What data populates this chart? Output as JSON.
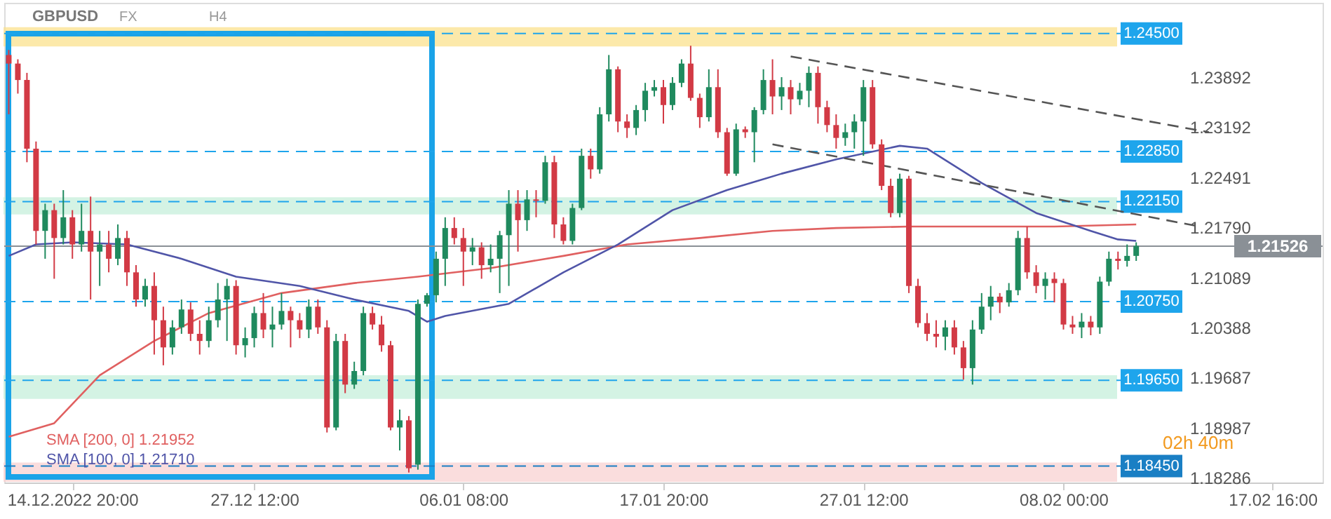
{
  "chart_data": {
    "type": "candlestick",
    "title": "GBPUSD",
    "annotations": [
      "FX",
      "H4",
      "02h 40m"
    ],
    "categories": [
      null,
      null,
      null,
      null,
      null,
      null,
      null,
      "14.12.2022 20:00",
      null,
      null,
      null,
      null,
      null,
      null,
      null,
      null,
      null,
      null,
      null,
      null,
      null,
      null,
      null,
      null,
      null,
      null,
      null,
      "27.12 12:00",
      null,
      null,
      null,
      null,
      null,
      null,
      null,
      null,
      null,
      null,
      null,
      null,
      null,
      null,
      null,
      null,
      null,
      null,
      null,
      null,
      null,
      null,
      "06.01 08:00",
      null,
      null,
      null,
      null,
      null,
      null,
      null,
      null,
      null,
      null,
      null,
      null,
      null,
      null,
      null,
      null,
      null,
      null,
      null,
      null,
      null,
      "17.01 20:00",
      null,
      null,
      null,
      null,
      null,
      null,
      null,
      null,
      null,
      null,
      null,
      null,
      null,
      null,
      null,
      null,
      null,
      null,
      null,
      null,
      null,
      "27.01 12:00",
      null,
      null,
      null,
      null,
      null,
      null,
      null,
      null,
      null,
      null,
      null,
      null,
      null,
      null,
      null,
      null,
      null,
      null,
      null,
      null,
      null,
      "08.02 00:00",
      null,
      null,
      null,
      null,
      null,
      null,
      null,
      null,
      null,
      null,
      null,
      null,
      null,
      null,
      null,
      null,
      null,
      null,
      null,
      null,
      null,
      null,
      "17.02 16:00",
      null,
      null,
      null,
      null,
      null
    ],
    "ohlc": [
      [
        1.242,
        1.2427,
        1.2337,
        1.2408
      ],
      [
        1.2408,
        1.2414,
        1.2366,
        1.2385
      ],
      [
        1.2385,
        1.2395,
        1.227,
        1.2289
      ],
      [
        1.2289,
        1.2299,
        1.2155,
        1.2174
      ],
      [
        1.2174,
        1.2212,
        1.2135,
        1.2203
      ],
      [
        1.2203,
        1.2212,
        1.2107,
        1.2164
      ],
      [
        1.2164,
        1.2231,
        1.2155,
        1.2193
      ],
      [
        1.2193,
        1.2203,
        1.2135,
        1.2155
      ],
      [
        1.2155,
        1.2212,
        1.2145,
        1.2174
      ],
      [
        1.2174,
        1.2222,
        1.2078,
        1.2145
      ],
      [
        1.2145,
        1.2174,
        1.2097,
        1.2155
      ],
      [
        1.2155,
        1.2174,
        1.2116,
        1.2135
      ],
      [
        1.2135,
        1.2183,
        1.2126,
        1.2164
      ],
      [
        1.2164,
        1.2174,
        1.2097,
        1.2116
      ],
      [
        1.2116,
        1.2126,
        1.2068,
        1.2078
      ],
      [
        1.2078,
        1.2107,
        1.2068,
        1.2097
      ],
      [
        1.2097,
        1.2116,
        1.2001,
        1.2049
      ],
      [
        1.2049,
        1.2068,
        1.1986,
        1.2011
      ],
      [
        1.2011,
        1.2049,
        1.2001,
        1.2039
      ],
      [
        1.2039,
        1.2078,
        1.203,
        1.2064
      ],
      [
        1.2064,
        1.2074,
        1.202,
        1.203
      ],
      [
        1.203,
        1.2049,
        1.2001,
        1.202
      ],
      [
        1.202,
        1.2068,
        1.2011,
        1.2049
      ],
      [
        1.2049,
        1.2101,
        1.2039,
        1.2078
      ],
      [
        1.2078,
        1.2107,
        1.202,
        1.2097
      ],
      [
        1.2097,
        1.2105,
        1.2001,
        1.2014
      ],
      [
        1.2014,
        1.2039,
        1.1997,
        1.2024
      ],
      [
        1.2024,
        1.2068,
        1.2011,
        1.2059
      ],
      [
        1.2059,
        1.2087,
        1.2024,
        1.2036
      ],
      [
        1.2036,
        1.2068,
        1.2011,
        1.2043
      ],
      [
        1.2043,
        1.2087,
        1.2036,
        1.2062
      ],
      [
        1.2062,
        1.2068,
        1.2011,
        1.2049
      ],
      [
        1.2049,
        1.2059,
        1.2024,
        1.2036
      ],
      [
        1.2036,
        1.2078,
        1.2024,
        1.2068
      ],
      [
        1.2068,
        1.2078,
        1.203,
        1.2039
      ],
      [
        1.2039,
        1.2049,
        1.1892,
        1.1899
      ],
      [
        1.1899,
        1.203,
        1.1895,
        1.202
      ],
      [
        1.202,
        1.203,
        1.1947,
        1.1959
      ],
      [
        1.1959,
        1.1991,
        1.1953,
        1.1978
      ],
      [
        1.1978,
        1.2068,
        1.1972,
        1.2059
      ],
      [
        1.2059,
        1.2068,
        1.2036,
        1.2043
      ],
      [
        1.2043,
        1.2055,
        1.2005,
        1.2014
      ],
      [
        1.2014,
        1.202,
        1.1895,
        1.1899
      ],
      [
        1.1899,
        1.1924,
        1.1867,
        1.1909
      ],
      [
        1.1909,
        1.1915,
        1.1836,
        1.1842
      ],
      [
        1.1847,
        1.2078,
        1.184,
        1.2072
      ],
      [
        1.2072,
        1.2087,
        1.2068,
        1.2084
      ],
      [
        1.2084,
        1.2145,
        1.2074,
        1.2135
      ],
      [
        1.2135,
        1.2193,
        1.2097,
        1.2178
      ],
      [
        1.2178,
        1.2193,
        1.2155,
        1.2164
      ],
      [
        1.2164,
        1.2178,
        1.2097,
        1.2145
      ],
      [
        1.2145,
        1.2164,
        1.2126,
        1.2151
      ],
      [
        1.2151,
        1.2158,
        1.2107,
        1.2126
      ],
      [
        1.2126,
        1.2155,
        1.2116,
        1.2135
      ],
      [
        1.2135,
        1.2174,
        1.2087,
        1.2168
      ],
      [
        1.2168,
        1.2231,
        1.2097,
        1.2212
      ],
      [
        1.2212,
        1.2231,
        1.2145,
        1.2189
      ],
      [
        1.2189,
        1.2231,
        1.2174,
        1.2218
      ],
      [
        1.2218,
        1.2231,
        1.2193,
        1.2216
      ],
      [
        1.2216,
        1.2279,
        1.2212,
        1.227
      ],
      [
        1.227,
        1.2279,
        1.2164,
        1.2183
      ],
      [
        1.2183,
        1.2193,
        1.2155,
        1.216
      ],
      [
        1.216,
        1.2212,
        1.2155,
        1.2206
      ],
      [
        1.2206,
        1.2289,
        1.2203,
        1.2279
      ],
      [
        1.2279,
        1.2289,
        1.2247,
        1.226
      ],
      [
        1.226,
        1.2347,
        1.2254,
        1.2337
      ],
      [
        1.2337,
        1.242,
        1.2327,
        1.24
      ],
      [
        1.24,
        1.2404,
        1.2312,
        1.2327
      ],
      [
        1.2327,
        1.2337,
        1.2304,
        1.2318
      ],
      [
        1.2318,
        1.235,
        1.2308,
        1.2343
      ],
      [
        1.2343,
        1.2381,
        1.2327,
        1.237
      ],
      [
        1.237,
        1.2385,
        1.2362,
        1.2375
      ],
      [
        1.2375,
        1.2385,
        1.2324,
        1.235
      ],
      [
        1.235,
        1.2389,
        1.2343,
        1.2381
      ],
      [
        1.2381,
        1.2414,
        1.2375,
        1.2408
      ],
      [
        1.2408,
        1.2433,
        1.2356,
        1.236
      ],
      [
        1.236,
        1.2366,
        1.2318,
        1.2333
      ],
      [
        1.2333,
        1.24,
        1.2327,
        1.2375
      ],
      [
        1.2375,
        1.24,
        1.2304,
        1.2312
      ],
      [
        1.2312,
        1.2318,
        1.2251,
        1.2254
      ],
      [
        1.2254,
        1.2324,
        1.2251,
        1.2316
      ],
      [
        1.2316,
        1.232,
        1.2304,
        1.2312
      ],
      [
        1.2312,
        1.2347,
        1.227,
        1.2343
      ],
      [
        1.2343,
        1.24,
        1.2337,
        1.2385
      ],
      [
        1.2385,
        1.2414,
        1.2337,
        1.2362
      ],
      [
        1.2362,
        1.2389,
        1.2343,
        1.2375
      ],
      [
        1.2375,
        1.2385,
        1.2337,
        1.2358
      ],
      [
        1.2358,
        1.2381,
        1.235,
        1.237
      ],
      [
        1.237,
        1.2404,
        1.2347,
        1.2395
      ],
      [
        1.2395,
        1.2404,
        1.2324,
        1.2347
      ],
      [
        1.2347,
        1.2356,
        1.2312,
        1.2322
      ],
      [
        1.2322,
        1.2337,
        1.2289,
        1.2304
      ],
      [
        1.2304,
        1.2324,
        1.2293,
        1.2312
      ],
      [
        1.2312,
        1.2337,
        1.2289,
        1.2327
      ],
      [
        1.2327,
        1.2385,
        1.2279,
        1.2375
      ],
      [
        1.2375,
        1.2385,
        1.2289,
        1.2295
      ],
      [
        1.2295,
        1.2302,
        1.2231,
        1.2237
      ],
      [
        1.2237,
        1.2247,
        1.2193,
        1.2199
      ],
      [
        1.2199,
        1.2254,
        1.2193,
        1.2247
      ],
      [
        1.2247,
        1.2251,
        1.2087,
        1.2097
      ],
      [
        1.2097,
        1.2107,
        1.2039,
        1.2045
      ],
      [
        1.2045,
        1.2059,
        1.202,
        1.203
      ],
      [
        1.203,
        1.2049,
        1.2011,
        1.2026
      ],
      [
        1.2026,
        1.2049,
        1.2007,
        1.2039
      ],
      [
        1.2039,
        1.2049,
        1.2001,
        1.2011
      ],
      [
        1.2011,
        1.202,
        1.1966,
        1.1982
      ],
      [
        1.1982,
        1.2049,
        1.1959,
        1.2036
      ],
      [
        1.2036,
        1.2087,
        1.203,
        1.2068
      ],
      [
        1.2068,
        1.2097,
        1.2049,
        1.2082
      ],
      [
        1.2082,
        1.2087,
        1.2059,
        1.2074
      ],
      [
        1.2074,
        1.2101,
        1.2068,
        1.2091
      ],
      [
        1.2091,
        1.2174,
        1.2084,
        1.2164
      ],
      [
        1.2164,
        1.218,
        1.2107,
        1.2116
      ],
      [
        1.2116,
        1.2126,
        1.2087,
        1.2097
      ],
      [
        1.2097,
        1.2116,
        1.2078,
        1.2107
      ],
      [
        1.2107,
        1.2116,
        1.2074,
        1.2101
      ],
      [
        1.2101,
        1.2107,
        1.2036,
        1.2043
      ],
      [
        1.2043,
        1.2055,
        1.203,
        1.2039
      ],
      [
        1.2039,
        1.2059,
        1.2024,
        1.2047
      ],
      [
        1.2047,
        1.2055,
        1.2028,
        1.2039
      ],
      [
        1.2039,
        1.211,
        1.203,
        1.2103
      ],
      [
        1.2103,
        1.2145,
        1.2097,
        1.2135
      ],
      [
        1.2135,
        1.2145,
        1.212,
        1.2132
      ],
      [
        1.2132,
        1.2155,
        1.2124,
        1.2139
      ],
      [
        1.2139,
        1.2158,
        1.2132,
        1.2153
      ],
      null,
      null,
      null,
      null,
      null,
      null,
      null,
      null,
      null,
      null,
      null,
      null,
      null,
      null,
      null,
      null,
      null,
      null,
      null,
      null
    ],
    "colors": [
      "#d23a45",
      "#d23a45",
      "#d23a45",
      "#d23a45",
      "#1f8a5e",
      "#d23a45",
      "#1f8a5e",
      "#d23a45",
      "#1f8a5e",
      "#d23a45",
      "#1f8a5e",
      "#d23a45",
      "#1f8a5e",
      "#d23a45",
      "#d23a45",
      "#1f8a5e",
      "#d23a45",
      "#d23a45",
      "#1f8a5e",
      "#1f8a5e",
      "#d23a45",
      "#d23a45",
      "#1f8a5e",
      "#1f8a5e",
      "#1f8a5e",
      "#d23a45",
      "#1f8a5e",
      "#1f8a5e",
      "#d23a45",
      "#1f8a5e",
      "#1f8a5e",
      "#d23a45",
      "#d23a45",
      "#1f8a5e",
      "#d23a45",
      "#d23a45",
      "#1f8a5e",
      "#d23a45",
      "#1f8a5e",
      "#1f8a5e",
      "#d23a45",
      "#d23a45",
      "#d23a45",
      "#1f8a5e",
      "#d23a45",
      "#1f8a5e",
      "#1f8a5e",
      "#1f8a5e",
      "#1f8a5e",
      "#d23a45",
      "#d23a45",
      "#1f8a5e",
      "#d23a45",
      "#1f8a5e",
      "#1f8a5e",
      "#1f8a5e",
      "#d23a45",
      "#1f8a5e",
      "#d23a45",
      "#1f8a5e",
      "#d23a45",
      "#d23a45",
      "#1f8a5e",
      "#1f8a5e",
      "#d23a45",
      "#1f8a5e",
      "#1f8a5e",
      "#d23a45",
      "#d23a45",
      "#1f8a5e",
      "#1f8a5e",
      "#1f8a5e",
      "#d23a45",
      "#1f8a5e",
      "#1f8a5e",
      "#d23a45",
      "#d23a45",
      "#1f8a5e",
      "#d23a45",
      "#d23a45",
      "#1f8a5e",
      "#d23a45",
      "#1f8a5e",
      "#1f8a5e",
      "#d23a45",
      "#1f8a5e",
      "#d23a45",
      "#1f8a5e",
      "#1f8a5e",
      "#d23a45",
      "#d23a45",
      "#d23a45",
      "#1f8a5e",
      "#1f8a5e",
      "#1f8a5e",
      "#d23a45",
      "#d23a45",
      "#d23a45",
      "#1f8a5e",
      "#d23a45",
      "#d23a45",
      "#d23a45",
      "#d23a45",
      "#1f8a5e",
      "#d23a45",
      "#d23a45",
      "#1f8a5e",
      "#1f8a5e",
      "#1f8a5e",
      "#d23a45",
      "#1f8a5e",
      "#1f8a5e",
      "#d23a45",
      "#d23a45",
      "#1f8a5e",
      "#d23a45",
      "#d23a45",
      "#d23a45",
      "#1f8a5e",
      "#d23a45",
      "#1f8a5e",
      "#1f8a5e",
      "#d23a45",
      "#1f8a5e",
      "#1f8a5e",
      null,
      null,
      null,
      null,
      null,
      null,
      null,
      null,
      null,
      null,
      null,
      null,
      null,
      null,
      null,
      null,
      null,
      null,
      null,
      null
    ],
    "series": [
      {
        "type": "line",
        "name": "SMA [200, 0] 1.21952",
        "color": "#e06060",
        "values": [
          1.1886,
          null,
          null,
          null,
          null,
          1.1905,
          null,
          null,
          null,
          null,
          1.1972,
          null,
          null,
          null,
          null,
          null,
          1.202,
          null,
          null,
          null,
          null,
          null,
          1.2059,
          null,
          null,
          null,
          null,
          null,
          null,
          null,
          1.2087,
          null,
          null,
          null,
          null,
          null,
          null,
          null,
          1.2101,
          null,
          null,
          null,
          null,
          null,
          null,
          1.211,
          null,
          null,
          null,
          null,
          null,
          null,
          null,
          1.2122,
          null,
          null,
          null,
          null,
          null,
          null,
          null,
          1.2139,
          null,
          null,
          null,
          null,
          null,
          null,
          1.2155,
          null,
          null,
          null,
          null,
          null,
          null,
          null,
          1.2164,
          null,
          null,
          null,
          null,
          null,
          null,
          null,
          1.2174,
          null,
          null,
          null,
          null,
          null,
          null,
          1.2178,
          null,
          null,
          null,
          null,
          null,
          null,
          null,
          1.218,
          null,
          null,
          null,
          null,
          null,
          null,
          null,
          1.218,
          null,
          null,
          null,
          null,
          null,
          null,
          null,
          1.218,
          null,
          null,
          null,
          null,
          null,
          null,
          null,
          null,
          1.2183,
          null,
          null,
          null,
          null,
          null,
          null,
          null,
          null,
          null,
          null,
          null,
          null,
          null,
          null,
          null,
          null,
          null,
          null,
          null,
          null
        ]
      },
      {
        "type": "line",
        "name": "SMA [100, 0] 1.21710",
        "color": "#5055a8",
        "values": [
          1.2139,
          null,
          null,
          1.2155,
          null,
          null,
          null,
          1.2158,
          null,
          null,
          null,
          null,
          null,
          1.2155,
          null,
          null,
          null,
          null,
          null,
          1.2135,
          null,
          null,
          null,
          null,
          null,
          1.211,
          null,
          null,
          null,
          null,
          null,
          null,
          1.2097,
          null,
          null,
          null,
          null,
          null,
          1.2078,
          null,
          null,
          null,
          null,
          null,
          1.2062,
          null,
          1.2047,
          null,
          1.2055,
          null,
          null,
          null,
          null,
          null,
          null,
          1.2072,
          null,
          null,
          null,
          null,
          null,
          1.2116,
          null,
          null,
          null,
          null,
          null,
          1.2155,
          null,
          null,
          null,
          null,
          null,
          1.2203,
          null,
          null,
          null,
          null,
          null,
          1.2231,
          null,
          null,
          null,
          null,
          null,
          1.2254,
          null,
          null,
          null,
          null,
          null,
          1.2274,
          null,
          null,
          null,
          null,
          null,
          null,
          1.2293,
          null,
          null,
          1.2289,
          null,
          null,
          null,
          null,
          null,
          1.2241,
          null,
          null,
          null,
          null,
          null,
          1.2199,
          null,
          null,
          null,
          null,
          null,
          1.2174,
          null,
          null,
          1.2162,
          null,
          1.216,
          null,
          null,
          null,
          null,
          null,
          null,
          null,
          null,
          null,
          null,
          null,
          null,
          null,
          null,
          null,
          null,
          null,
          null,
          null,
          null
        ]
      },
      {
        "type": "line",
        "color": "#555555",
        "line_style": "dashed",
        "values": [
          null,
          null,
          null,
          null,
          null,
          null,
          null,
          null,
          null,
          null,
          null,
          null,
          null,
          null,
          null,
          null,
          null,
          null,
          null,
          null,
          null,
          null,
          null,
          null,
          null,
          null,
          null,
          null,
          null,
          null,
          null,
          null,
          null,
          null,
          null,
          null,
          null,
          null,
          null,
          null,
          null,
          null,
          null,
          null,
          null,
          null,
          null,
          null,
          null,
          null,
          null,
          null,
          null,
          null,
          null,
          null,
          null,
          null,
          null,
          null,
          null,
          null,
          null,
          null,
          null,
          null,
          null,
          null,
          null,
          null,
          null,
          null,
          null,
          null,
          null,
          null,
          null,
          null,
          null,
          null,
          null,
          null,
          null,
          null,
          null,
          null,
          1.2418,
          null,
          null,
          null,
          null,
          null,
          null,
          null,
          null,
          null,
          null,
          null,
          null,
          null,
          null,
          null,
          null,
          null,
          null,
          null,
          null,
          null,
          null,
          null,
          null,
          null,
          null,
          null,
          null,
          null,
          null,
          null,
          null,
          null,
          null,
          null,
          null,
          null,
          null,
          null,
          null,
          null,
          null,
          null,
          null,
          null,
          1.2312,
          null,
          null,
          null,
          null,
          null,
          null,
          null,
          null,
          null,
          null,
          null,
          null
        ]
      },
      {
        "type": "line",
        "color": "#555555",
        "line_style": "dashed",
        "values": [
          null,
          null,
          null,
          null,
          null,
          null,
          null,
          null,
          null,
          null,
          null,
          null,
          null,
          null,
          null,
          null,
          null,
          null,
          null,
          null,
          null,
          null,
          null,
          null,
          null,
          null,
          null,
          null,
          null,
          null,
          null,
          null,
          null,
          null,
          null,
          null,
          null,
          null,
          null,
          null,
          null,
          null,
          null,
          null,
          null,
          null,
          null,
          null,
          null,
          null,
          null,
          null,
          null,
          null,
          null,
          null,
          null,
          null,
          null,
          null,
          null,
          null,
          null,
          null,
          null,
          null,
          null,
          null,
          null,
          null,
          null,
          null,
          null,
          null,
          null,
          null,
          null,
          null,
          null,
          null,
          null,
          null,
          null,
          null,
          1.2295,
          null,
          null,
          null,
          null,
          null,
          null,
          null,
          null,
          null,
          null,
          null,
          null,
          null,
          null,
          null,
          null,
          null,
          null,
          null,
          null,
          null,
          null,
          null,
          null,
          null,
          null,
          null,
          null,
          null,
          null,
          null,
          null,
          null,
          null,
          null,
          null,
          null,
          null,
          null,
          null,
          null,
          null,
          null,
          null,
          null,
          null,
          1.218,
          null,
          null,
          null,
          null,
          null,
          null,
          null,
          null,
          null,
          null,
          null,
          null,
          null
        ]
      }
    ],
    "ref_lines": [
      {
        "axis": "y",
        "value": 1.245,
        "label": "1.24500",
        "color": "#1ea5ec",
        "line_style": "dashed"
      },
      {
        "axis": "y",
        "value": 1.2285,
        "label": "1.22850",
        "color": "#1ea5ec",
        "line_style": "dashed"
      },
      {
        "axis": "y",
        "value": 1.2215,
        "label": "1.22150",
        "color": "#1ea5ec",
        "line_style": "dashed"
      },
      {
        "axis": "y",
        "value": 1.2075,
        "label": "1.20750",
        "color": "#1ea5ec",
        "line_style": "dashed"
      },
      {
        "axis": "y",
        "value": 1.1965,
        "label": "1.19650",
        "color": "#1ea5ec",
        "line_style": "dashed"
      },
      {
        "axis": "y",
        "value": 1.1845,
        "label": "1.18450",
        "color": "#1a7fc4",
        "line_style": "dashed"
      },
      {
        "axis": "y",
        "value": 1.21526,
        "label": "1.21526",
        "color": "#8a9096",
        "line_style": "solid"
      }
    ],
    "bands": [
      {
        "axis": "y",
        "from": 1.2433,
        "to": 1.2458,
        "color": "#fbe28e"
      },
      {
        "axis": "y",
        "from": 1.2198,
        "to": 1.222,
        "color": "#c6efdc"
      },
      {
        "axis": "y",
        "from": 1.194,
        "to": 1.1971,
        "color": "#c6efdc"
      },
      {
        "axis": "y",
        "from": 1.1824,
        "to": 1.1849,
        "color": "#f9d2d2"
      }
    ],
    "ylim": [
      1.1822,
      1.2493
    ],
    "yticks": [
      {
        "value": 1.23892,
        "label": "1.23892"
      },
      {
        "value": 1.23192,
        "label": "1.23192"
      },
      {
        "value": 1.22491,
        "label": "1.22491"
      },
      {
        "value": 1.2179,
        "label": "1.21790"
      },
      {
        "value": 1.21089,
        "label": "1.21089"
      },
      {
        "value": 1.20388,
        "label": "1.20388"
      },
      {
        "value": 1.19687,
        "label": "1.19687"
      },
      {
        "value": 1.18987,
        "label": "1.18987"
      },
      {
        "value": 1.18286,
        "label": "1.18286"
      }
    ],
    "grid": false,
    "legend": "bottom left"
  }
}
